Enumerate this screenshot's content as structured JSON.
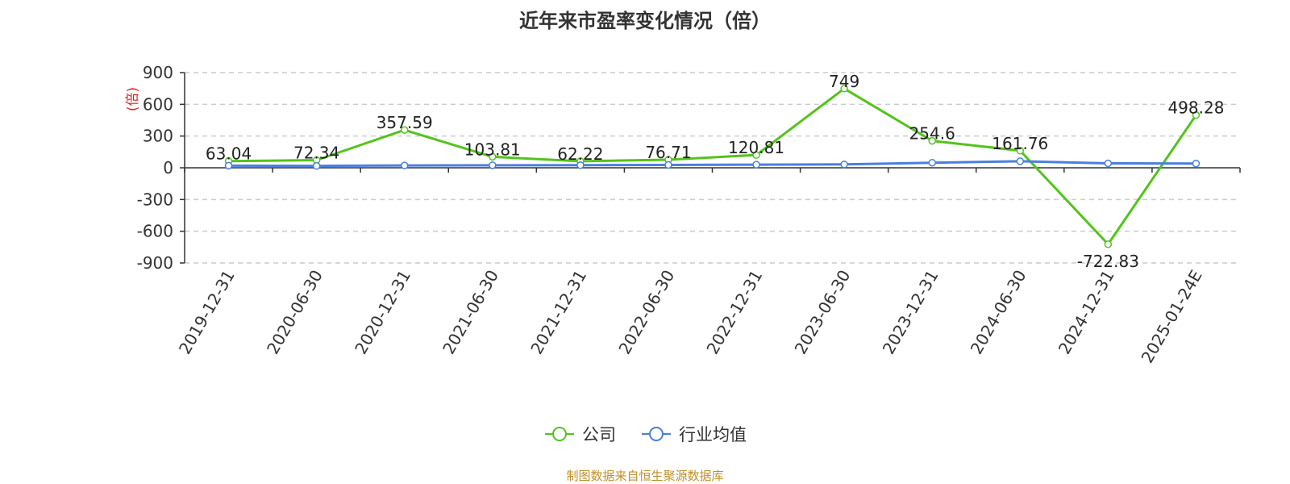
{
  "chart_data": {
    "type": "line",
    "title": "近年来市盈率变化情况（倍）",
    "ylabel": "(倍)",
    "xlabel": "",
    "categories": [
      "2019-12-31",
      "2020-06-30",
      "2020-12-31",
      "2021-06-30",
      "2021-12-31",
      "2022-06-30",
      "2022-12-31",
      "2023-06-30",
      "2023-12-31",
      "2024-06-30",
      "2024-12-31",
      "2025-01-24E"
    ],
    "ylim": [
      -900,
      900
    ],
    "yticks": [
      900,
      600,
      300,
      0,
      -300,
      -600,
      -900
    ],
    "grid": true,
    "legend_position": "bottom",
    "series": [
      {
        "name": "公司",
        "color": "#52c41a",
        "values": [
          63.04,
          72.34,
          357.59,
          103.81,
          62.22,
          76.71,
          120.81,
          749,
          254.6,
          161.76,
          -722.83,
          498.28
        ],
        "labels": [
          "63.04",
          "72.34",
          "357.59",
          "103.81",
          "62.22",
          "76.71",
          "120.81",
          "749",
          "254.6",
          "161.76",
          "-722.83",
          "498.28"
        ]
      },
      {
        "name": "行业均值",
        "color": "#4a7fe0",
        "values": [
          20,
          18,
          22,
          24,
          25,
          27,
          30,
          32,
          48,
          62,
          42,
          40
        ]
      }
    ],
    "source_note": "制图数据来自恒生聚源数据库"
  }
}
